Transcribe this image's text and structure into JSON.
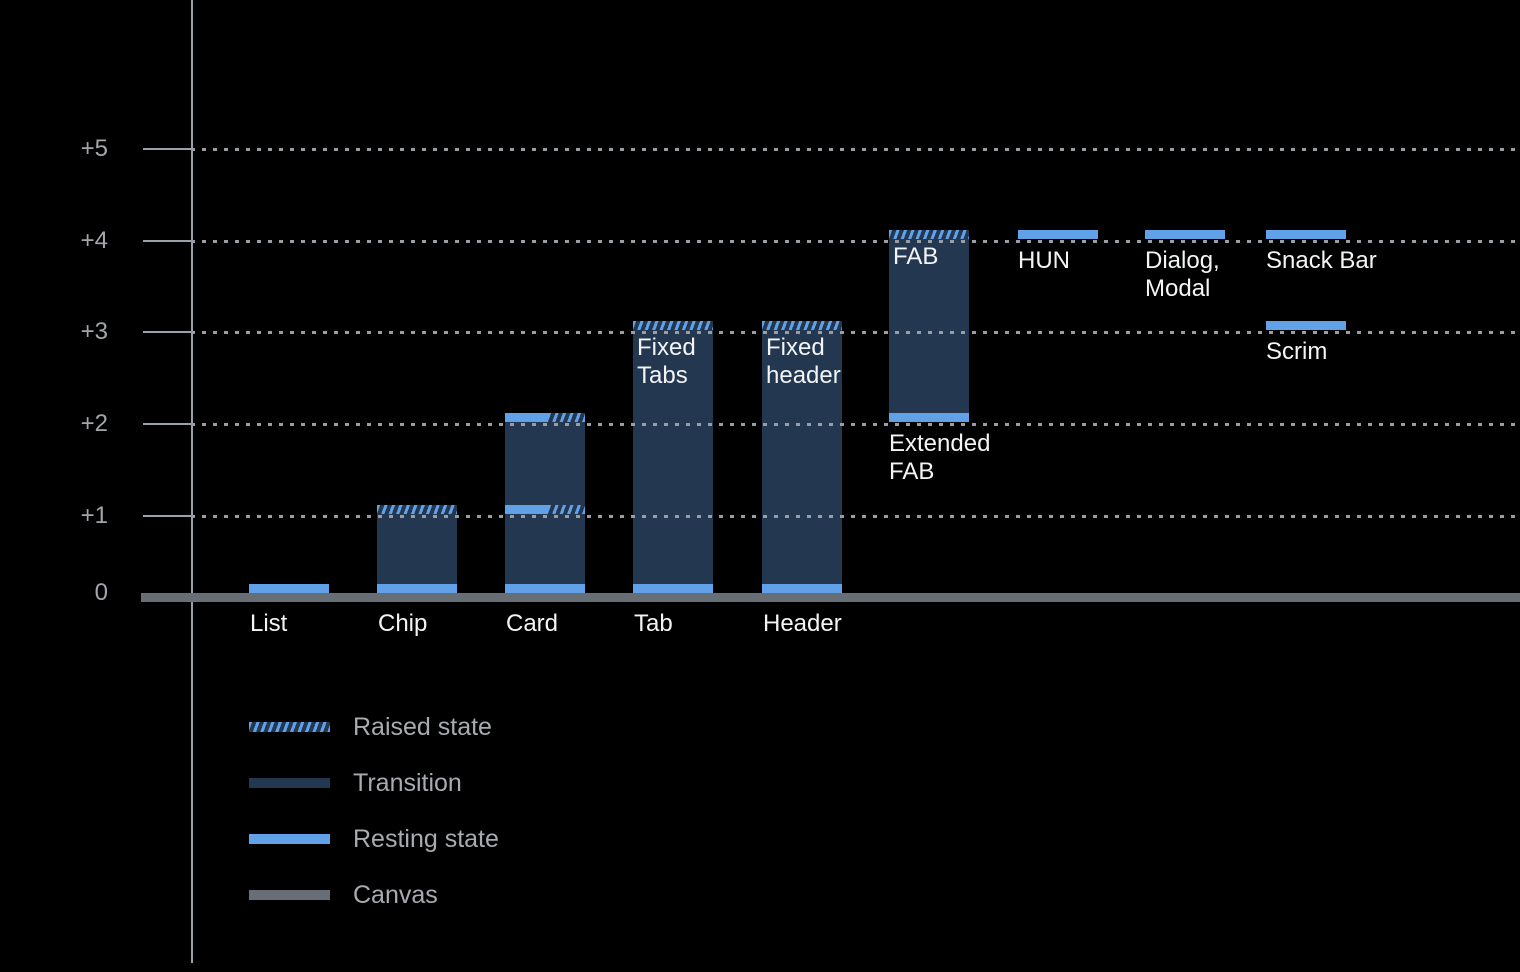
{
  "colors": {
    "background": "#000000",
    "axis": "#9BA1A8",
    "grid_dot": "#989EA4",
    "tick_label": "#A2A6AB",
    "canvas": "#676E76",
    "transition": "#243750",
    "resting": "#61A1E8",
    "hatch_stripe": "#61A1E8",
    "bar_label": "#F3F4F5",
    "legend_text": "#A8ABAF"
  },
  "chart_data": {
    "type": "bar",
    "title": "",
    "xlabel": "",
    "ylabel": "",
    "y_axis": {
      "range": [
        0,
        5
      ],
      "gridlines": "dotted",
      "ticks": [
        {
          "label": "0",
          "level": 0
        },
        {
          "label": "+1",
          "level": 1
        },
        {
          "label": "+2",
          "level": 2
        },
        {
          "label": "+3",
          "level": 3
        },
        {
          "label": "+4",
          "level": 4
        },
        {
          "label": "+5",
          "level": 5
        }
      ]
    },
    "components": [
      {
        "name": "list",
        "axis_label": "List",
        "column": 0,
        "transition": null,
        "bands": [
          {
            "level": 0,
            "style": "resting"
          }
        ]
      },
      {
        "name": "chip",
        "axis_label": "Chip",
        "column": 1,
        "transition": {
          "from": 0,
          "to": 1
        },
        "bands": [
          {
            "level": 0,
            "style": "resting"
          },
          {
            "level": 1,
            "style": "raised"
          }
        ]
      },
      {
        "name": "card",
        "axis_label": "Card",
        "column": 2,
        "transition": {
          "from": 0,
          "to": 2
        },
        "bands": [
          {
            "level": 0,
            "style": "resting"
          },
          {
            "level": 1,
            "style": "mixed"
          },
          {
            "level": 2,
            "style": "mixed"
          }
        ]
      },
      {
        "name": "tab",
        "axis_label": "Tab",
        "inner_label": "Fixed\nTabs",
        "column": 3,
        "transition": {
          "from": 0,
          "to": 3
        },
        "bands": [
          {
            "level": 0,
            "style": "resting"
          },
          {
            "level": 3,
            "style": "raised"
          }
        ]
      },
      {
        "name": "header",
        "axis_label": "Header",
        "inner_label": "Fixed\nheader",
        "column": 4,
        "transition": {
          "from": 0,
          "to": 3
        },
        "bands": [
          {
            "level": 0,
            "style": "resting"
          },
          {
            "level": 3,
            "style": "raised"
          }
        ]
      },
      {
        "name": "fab",
        "inner_label": "FAB",
        "below_label": "Extended\nFAB",
        "column": 5,
        "transition": {
          "from": 2,
          "to": 4
        },
        "bands": [
          {
            "level": 2,
            "style": "resting"
          },
          {
            "level": 4,
            "style": "raised"
          }
        ]
      },
      {
        "name": "hun",
        "below_label": "HUN",
        "column": 6,
        "transition": null,
        "bands": [
          {
            "level": 4,
            "style": "resting"
          }
        ]
      },
      {
        "name": "dialog-modal",
        "below_label": "Dialog,\nModal",
        "column": 7,
        "transition": null,
        "bands": [
          {
            "level": 4,
            "style": "resting"
          }
        ]
      },
      {
        "name": "snack-bar",
        "below_label": "Snack Bar",
        "column": 8,
        "transition": null,
        "bands": [
          {
            "level": 4,
            "style": "resting"
          }
        ]
      },
      {
        "name": "scrim",
        "below_label": "Scrim",
        "column": 8,
        "transition": null,
        "bands": [
          {
            "level": 3,
            "style": "resting"
          }
        ]
      }
    ],
    "legend_position": "bottom-left"
  },
  "legend": {
    "items": [
      {
        "label": "Raised state",
        "swatch": "raised"
      },
      {
        "label": "Transition",
        "swatch": "transition"
      },
      {
        "label": "Resting state",
        "swatch": "resting"
      },
      {
        "label": "Canvas",
        "swatch": "canvas"
      }
    ]
  }
}
